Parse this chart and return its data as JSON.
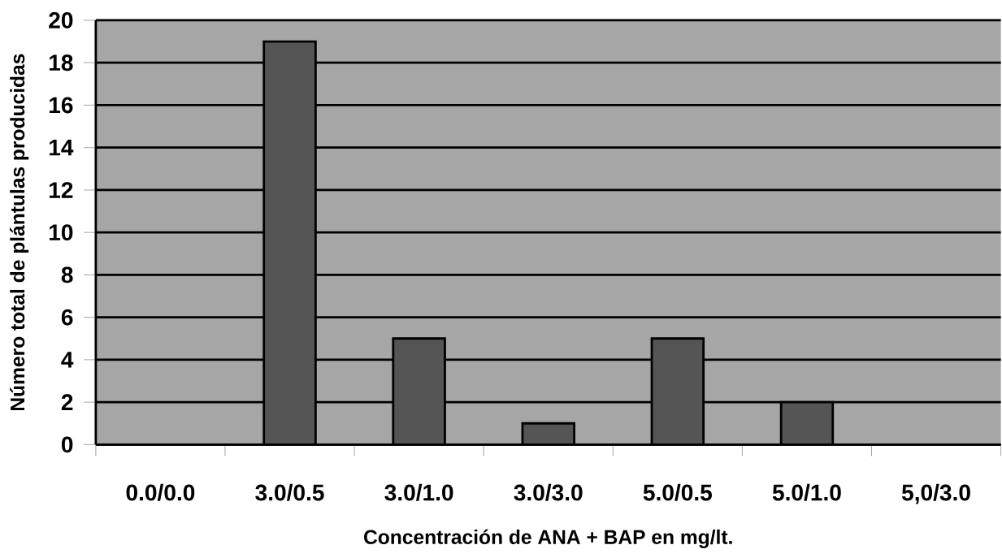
{
  "chart_data": {
    "type": "bar",
    "xlabel": "Concentración de ANA + BAP en mg/lt.",
    "ylabel": "Número total de plántulas producidas",
    "categories": [
      "0.0/0.0",
      "3.0/0.5",
      "3.0/1.0",
      "3.0/3.0",
      "5.0/0.5",
      "5.0/1.0",
      "5,0/3.0"
    ],
    "values": [
      0,
      19,
      5,
      1,
      5,
      2,
      0
    ],
    "color": "#555555",
    "ylim": [
      0,
      20
    ],
    "yticks": [
      0,
      2,
      4,
      6,
      8,
      10,
      12,
      14,
      16,
      18,
      20
    ],
    "grid": "y"
  }
}
